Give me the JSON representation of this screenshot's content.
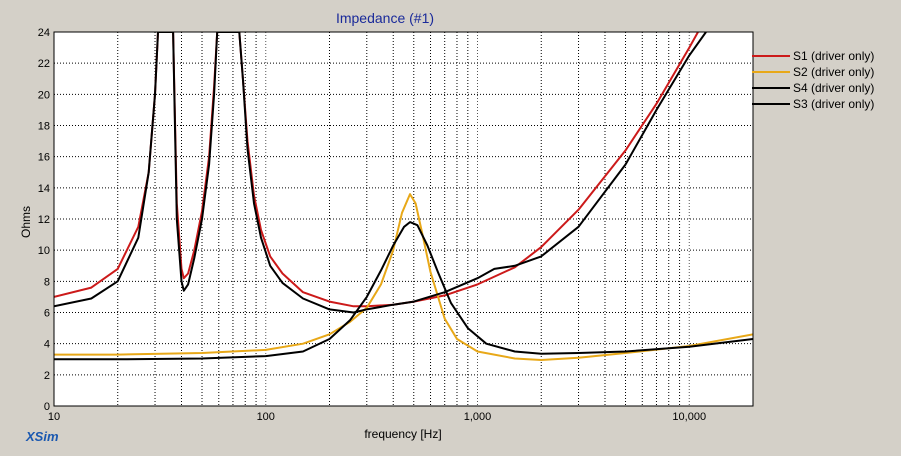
{
  "app": {
    "brand": "XSim"
  },
  "chart_data": {
    "type": "line",
    "title": "Impedance (#1)",
    "xlabel": "frequency [Hz]",
    "ylabel": "Ohms",
    "xscale": "log",
    "xlim": [
      10,
      20000
    ],
    "ylim": [
      0,
      24
    ],
    "grid": true,
    "legend_position": "right",
    "x_tick_labels": [
      {
        "value": 10,
        "label": "10"
      },
      {
        "value": 100,
        "label": "100"
      },
      {
        "value": 1000,
        "label": "1,000"
      },
      {
        "value": 10000,
        "label": "10,000"
      }
    ],
    "y_ticks": [
      0,
      2,
      4,
      6,
      8,
      10,
      12,
      14,
      16,
      18,
      20,
      22,
      24
    ],
    "series": [
      {
        "name": "S1 (driver only)",
        "color": "#cc1a1a",
        "points": [
          [
            10,
            7.0
          ],
          [
            15,
            7.6
          ],
          [
            20,
            8.8
          ],
          [
            25,
            11.5
          ],
          [
            28,
            15.0
          ],
          [
            30,
            20.0
          ],
          [
            31,
            24.0
          ],
          [
            36.5,
            24.0
          ],
          [
            38,
            13.0
          ],
          [
            40,
            8.8
          ],
          [
            41,
            8.2
          ],
          [
            43,
            8.5
          ],
          [
            46,
            10.0
          ],
          [
            50,
            12.5
          ],
          [
            54,
            16.0
          ],
          [
            57,
            20.5
          ],
          [
            59,
            24.0
          ],
          [
            75,
            24.0
          ],
          [
            78,
            21.0
          ],
          [
            82,
            17.0
          ],
          [
            88,
            13.5
          ],
          [
            95,
            11.3
          ],
          [
            105,
            9.6
          ],
          [
            120,
            8.5
          ],
          [
            150,
            7.3
          ],
          [
            200,
            6.7
          ],
          [
            260,
            6.4
          ],
          [
            300,
            6.4
          ],
          [
            400,
            6.5
          ],
          [
            500,
            6.7
          ],
          [
            700,
            7.1
          ],
          [
            1000,
            7.8
          ],
          [
            1500,
            8.9
          ],
          [
            2000,
            10.2
          ],
          [
            3000,
            12.6
          ],
          [
            5000,
            16.4
          ],
          [
            7000,
            19.4
          ],
          [
            10000,
            23.0
          ],
          [
            11000,
            24.0
          ]
        ]
      },
      {
        "name": "S2 (driver only)",
        "color": "#e8a818",
        "points": [
          [
            10,
            3.3
          ],
          [
            20,
            3.3
          ],
          [
            50,
            3.4
          ],
          [
            100,
            3.6
          ],
          [
            150,
            4.0
          ],
          [
            200,
            4.6
          ],
          [
            250,
            5.4
          ],
          [
            300,
            6.3
          ],
          [
            350,
            7.8
          ],
          [
            400,
            10.0
          ],
          [
            440,
            12.4
          ],
          [
            480,
            13.6
          ],
          [
            510,
            13.0
          ],
          [
            550,
            11.0
          ],
          [
            600,
            8.6
          ],
          [
            700,
            5.6
          ],
          [
            800,
            4.3
          ],
          [
            1000,
            3.5
          ],
          [
            1500,
            3.05
          ],
          [
            2000,
            2.95
          ],
          [
            3000,
            3.1
          ],
          [
            5000,
            3.4
          ],
          [
            10000,
            3.85
          ],
          [
            20000,
            4.6
          ]
        ]
      },
      {
        "name": "S4 (driver only)",
        "color": "#000000",
        "points": [
          [
            10,
            6.4
          ],
          [
            15,
            6.9
          ],
          [
            20,
            8.0
          ],
          [
            25,
            10.8
          ],
          [
            28,
            15.0
          ],
          [
            30,
            20.0
          ],
          [
            31,
            24.0
          ],
          [
            36.5,
            24.0
          ],
          [
            38,
            12.0
          ],
          [
            40,
            8.0
          ],
          [
            41,
            7.4
          ],
          [
            43,
            7.8
          ],
          [
            46,
            9.5
          ],
          [
            50,
            12.0
          ],
          [
            54,
            15.5
          ],
          [
            57,
            20.0
          ],
          [
            59,
            24.0
          ],
          [
            75,
            24.0
          ],
          [
            78,
            21.0
          ],
          [
            82,
            16.5
          ],
          [
            88,
            13.0
          ],
          [
            95,
            10.8
          ],
          [
            105,
            9.0
          ],
          [
            120,
            7.9
          ],
          [
            150,
            6.9
          ],
          [
            200,
            6.2
          ],
          [
            260,
            6.0
          ],
          [
            300,
            6.2
          ],
          [
            400,
            6.5
          ],
          [
            500,
            6.7
          ],
          [
            700,
            7.3
          ],
          [
            1000,
            8.2
          ],
          [
            1200,
            8.8
          ],
          [
            1500,
            9.0
          ],
          [
            2000,
            9.6
          ],
          [
            3000,
            11.5
          ],
          [
            5000,
            15.5
          ],
          [
            7000,
            19.0
          ],
          [
            10000,
            22.5
          ],
          [
            12000,
            24.0
          ]
        ]
      },
      {
        "name": "S3 (driver only)",
        "color": "#000000",
        "points": [
          [
            10,
            3.0
          ],
          [
            20,
            3.0
          ],
          [
            50,
            3.05
          ],
          [
            100,
            3.2
          ],
          [
            150,
            3.5
          ],
          [
            200,
            4.3
          ],
          [
            250,
            5.5
          ],
          [
            300,
            7.0
          ],
          [
            350,
            8.7
          ],
          [
            400,
            10.3
          ],
          [
            450,
            11.5
          ],
          [
            480,
            11.8
          ],
          [
            520,
            11.6
          ],
          [
            580,
            10.3
          ],
          [
            650,
            8.6
          ],
          [
            750,
            6.6
          ],
          [
            900,
            5.0
          ],
          [
            1100,
            4.0
          ],
          [
            1500,
            3.5
          ],
          [
            2000,
            3.35
          ],
          [
            3000,
            3.4
          ],
          [
            5000,
            3.5
          ],
          [
            10000,
            3.8
          ],
          [
            20000,
            4.3
          ]
        ]
      }
    ]
  }
}
